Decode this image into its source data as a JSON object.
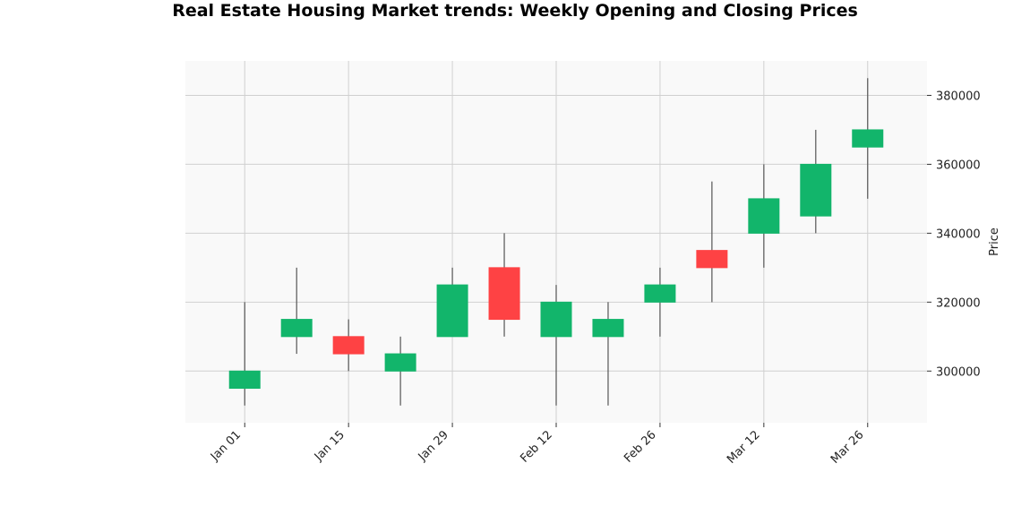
{
  "chart_data": {
    "type": "candlestick",
    "title": "Real Estate Housing Market trends: Weekly Opening and Closing Prices",
    "xlabel": "",
    "ylabel": "Price",
    "ylim": [
      285000,
      390000
    ],
    "y_ticks": [
      300000,
      320000,
      340000,
      360000,
      380000
    ],
    "x_ticks": [
      "Jan 01",
      "Jan 15",
      "Jan 29",
      "Feb 12",
      "Feb 26",
      "Mar 12",
      "Mar 26"
    ],
    "grid": true,
    "y_axis_side": "right",
    "colors": {
      "up": "#12b56b",
      "down": "#fe4244",
      "wick": "#555555",
      "plot_bg": "#f9f9f9",
      "grid": "#d0d0d0"
    },
    "candles": [
      {
        "date": "2023-01-01",
        "open": 295000,
        "high": 320000,
        "low": 290000,
        "close": 300000
      },
      {
        "date": "2023-01-08",
        "open": 310000,
        "high": 330000,
        "low": 305000,
        "close": 315000
      },
      {
        "date": "2023-01-15",
        "open": 310000,
        "high": 315000,
        "low": 300000,
        "close": 305000
      },
      {
        "date": "2023-01-22",
        "open": 300000,
        "high": 310000,
        "low": 290000,
        "close": 305000
      },
      {
        "date": "2023-01-29",
        "open": 310000,
        "high": 330000,
        "low": 310000,
        "close": 325000
      },
      {
        "date": "2023-02-05",
        "open": 330000,
        "high": 340000,
        "low": 310000,
        "close": 315000
      },
      {
        "date": "2023-02-12",
        "open": 310000,
        "high": 325000,
        "low": 290000,
        "close": 320000
      },
      {
        "date": "2023-02-19",
        "open": 310000,
        "high": 320000,
        "low": 290000,
        "close": 315000
      },
      {
        "date": "2023-02-26",
        "open": 320000,
        "high": 330000,
        "low": 310000,
        "close": 325000
      },
      {
        "date": "2023-03-05",
        "open": 335000,
        "high": 355000,
        "low": 320000,
        "close": 330000
      },
      {
        "date": "2023-03-12",
        "open": 340000,
        "high": 360000,
        "low": 330000,
        "close": 350000
      },
      {
        "date": "2023-03-19",
        "open": 345000,
        "high": 370000,
        "low": 340000,
        "close": 360000
      },
      {
        "date": "2023-03-26",
        "open": 365000,
        "high": 385000,
        "low": 350000,
        "close": 370000
      }
    ]
  }
}
